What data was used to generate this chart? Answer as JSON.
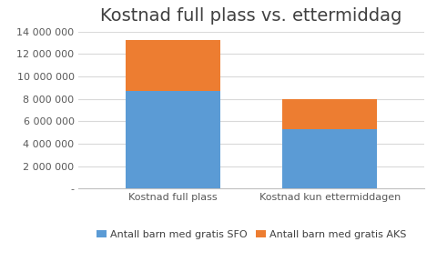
{
  "title": "Kostnad full plass vs. ettermiddag",
  "categories": [
    "Kostnad full plass",
    "Kostnad kun ettermiddagen"
  ],
  "sfo_values": [
    8700000,
    5300000
  ],
  "aks_values": [
    4500000,
    2700000
  ],
  "color_sfo": "#5b9bd5",
  "color_aks": "#ed7d31",
  "ylim": [
    0,
    14000000
  ],
  "yticks": [
    0,
    2000000,
    4000000,
    6000000,
    8000000,
    10000000,
    12000000,
    14000000
  ],
  "legend_sfo": "Antall barn med gratis SFO",
  "legend_aks": "Antall barn med gratis AKS",
  "background_color": "#ffffff",
  "grid_color": "#d9d9d9",
  "bar_width": 0.6,
  "title_fontsize": 14,
  "tick_fontsize": 8,
  "legend_fontsize": 8
}
